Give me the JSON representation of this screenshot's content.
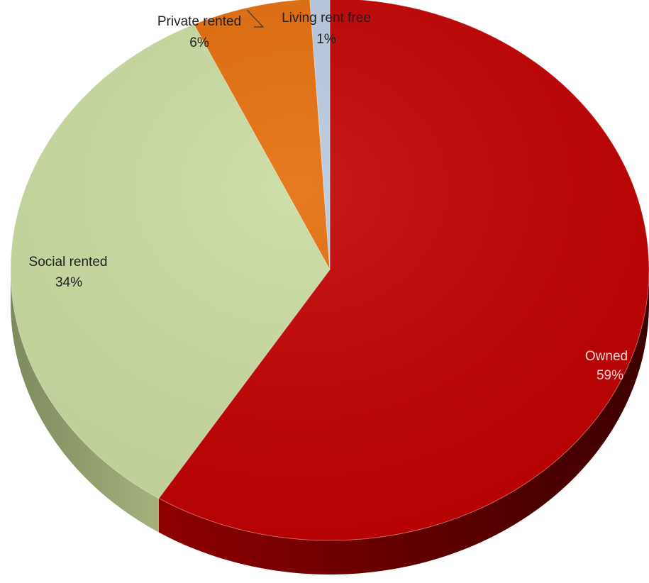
{
  "chart_data": {
    "type": "pie",
    "style": "3d-tilted",
    "title": "",
    "legend": "none",
    "slices": [
      {
        "name": "Owned",
        "label": "Owned",
        "value": 59,
        "value_label": "59%",
        "color": "#c00000",
        "side_color": "#6e0000"
      },
      {
        "name": "Social rented",
        "label": "Social rented",
        "value": 34,
        "value_label": "34%",
        "color": "#c9dba0",
        "side_color": "#8c9a6a"
      },
      {
        "name": "Private rented",
        "label": "Private rented",
        "value": 6,
        "value_label": "6%",
        "color": "#e36c0a",
        "side_color": "#8a3f04"
      },
      {
        "name": "Living rent free",
        "label": "Living rent free",
        "value": 1,
        "value_label": "1%",
        "color": "#b8c8df",
        "side_color": "#7b8aa0"
      }
    ]
  }
}
